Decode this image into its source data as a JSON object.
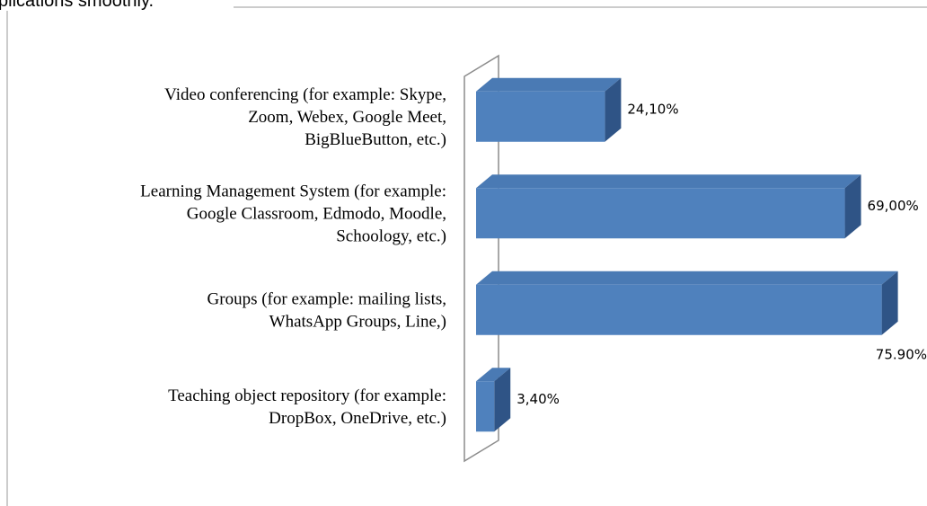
{
  "caption": "plications smoothly.",
  "chart_data": {
    "type": "bar3d_horizontal",
    "categories": [
      [
        "Video conferencing (for example: Skype,",
        "Zoom, Webex, Google Meet,",
        "BigBlueButton, etc.)"
      ],
      [
        "Learning Management System (for example:",
        "Google Classroom, Edmodo, Moodle,",
        "Schoology, etc.)"
      ],
      [
        "Groups (for example: mailing lists,",
        "WhatsApp Groups, Line,)"
      ],
      [
        "Teaching object repository (for example:",
        "DropBox, OneDrive, etc.)"
      ]
    ],
    "values": [
      24.1,
      69.0,
      75.9,
      3.4
    ],
    "value_labels": [
      "24,10%",
      "69,00%",
      "75.90%",
      "3,40%"
    ],
    "xlim": [
      0,
      80
    ],
    "color": "#4f81bd"
  }
}
